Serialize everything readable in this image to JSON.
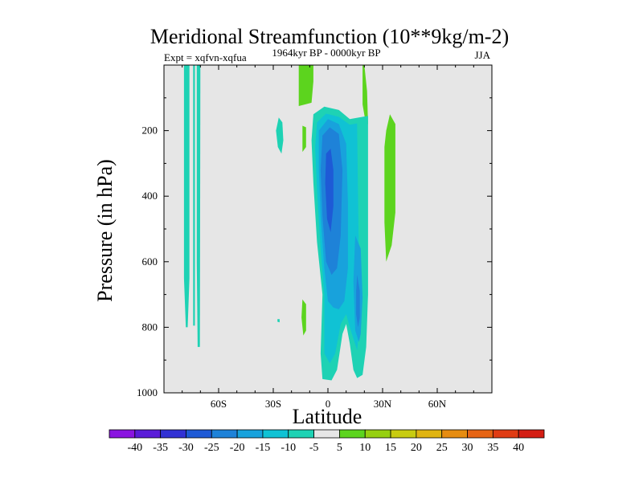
{
  "chart_data": {
    "type": "contour",
    "title": "Meridional Streamfunction (10**9kg/m-2)",
    "subtitle": "1964kyr BP - 0000kyr BP",
    "left_label": "Expt = xqfvn-xqfua",
    "right_label": "JJA",
    "xlabel": "Latitude",
    "ylabel": "Pressure (in hPa)",
    "x_ticks": [
      {
        "value": -60,
        "label": "60S"
      },
      {
        "value": -30,
        "label": "30S"
      },
      {
        "value": 0,
        "label": "0"
      },
      {
        "value": 30,
        "label": "30N"
      },
      {
        "value": 60,
        "label": "60N"
      }
    ],
    "y_ticks": [
      {
        "value": 200,
        "label": "200"
      },
      {
        "value": 400,
        "label": "400"
      },
      {
        "value": 600,
        "label": "600"
      },
      {
        "value": 800,
        "label": "800"
      },
      {
        "value": 1000,
        "label": "1000"
      }
    ],
    "xlim": [
      -90,
      90
    ],
    "ylim": [
      1000,
      0
    ],
    "background_color": "#e6e6e6",
    "colorbar": {
      "boundaries": [
        -40,
        -35,
        -30,
        -25,
        -20,
        -15,
        -10,
        -5,
        5,
        10,
        15,
        20,
        25,
        30,
        35,
        40
      ],
      "colors": [
        "#8a14e0",
        "#5a1cd8",
        "#3232d4",
        "#1e5ad6",
        "#1e82d8",
        "#18a2dc",
        "#10c2d4",
        "#1ed2b4",
        "#e6e6e6",
        "#5cd41e",
        "#96d010",
        "#c8cc10",
        "#e0b410",
        "#e68c10",
        "#e66414",
        "#e03c14",
        "#d41e14"
      ]
    },
    "regions": [
      {
        "level": -5,
        "color": "#1ed2b4",
        "points": [
          [
            -79,
            0
          ],
          [
            -76,
            0
          ],
          [
            -76,
            650
          ],
          [
            -77,
            800
          ],
          [
            -78,
            800
          ],
          [
            -79,
            650
          ]
        ]
      },
      {
        "level": -5,
        "color": "#1ed2b4",
        "points": [
          [
            -74,
            0
          ],
          [
            -73,
            0
          ],
          [
            -73,
            795
          ],
          [
            -74,
            795
          ]
        ]
      },
      {
        "level": -5,
        "color": "#1ed2b4",
        "points": [
          [
            -72,
            0
          ],
          [
            -70,
            0
          ],
          [
            -70.3,
            860
          ],
          [
            -71.5,
            860
          ],
          [
            -72,
            600
          ]
        ]
      },
      {
        "level": -5,
        "color": "#1ed2b4",
        "points": [
          [
            -27,
            160
          ],
          [
            -25,
            175
          ],
          [
            -24.5,
            230
          ],
          [
            -25.5,
            270
          ],
          [
            -27.5,
            250
          ],
          [
            -28.5,
            200
          ]
        ]
      },
      {
        "level": -5,
        "color": "#1ed2b4",
        "points": [
          [
            -27.7,
            775
          ],
          [
            -26.5,
            775
          ],
          [
            -26.5,
            785
          ],
          [
            -27.7,
            783
          ]
        ]
      },
      {
        "level": 5,
        "color": "#5cd41e",
        "points": [
          [
            -16,
            0
          ],
          [
            -8,
            0
          ],
          [
            -8,
            50
          ],
          [
            -9,
            115
          ],
          [
            -16,
            125
          ]
        ]
      },
      {
        "level": 5,
        "color": "#5cd41e",
        "points": [
          [
            19,
            0
          ],
          [
            20,
            0
          ],
          [
            21.5,
            80
          ],
          [
            22,
            180
          ],
          [
            21,
            185
          ],
          [
            19,
            120
          ]
        ]
      },
      {
        "level": 5,
        "color": "#5cd41e",
        "points": [
          [
            -14,
            185
          ],
          [
            -12,
            190
          ],
          [
            -12,
            250
          ],
          [
            -14,
            265
          ]
        ]
      },
      {
        "level": 5,
        "color": "#5cd41e",
        "points": [
          [
            -14,
            715
          ],
          [
            -12,
            730
          ],
          [
            -12,
            810
          ],
          [
            -13.5,
            825
          ],
          [
            -14.5,
            770
          ]
        ]
      },
      {
        "level": 5,
        "color": "#5cd41e",
        "points": [
          [
            34,
            150
          ],
          [
            37,
            180
          ],
          [
            37,
            450
          ],
          [
            35,
            550
          ],
          [
            32,
            600
          ],
          [
            31,
            480
          ],
          [
            31,
            250
          ],
          [
            32,
            200
          ]
        ]
      },
      {
        "level": -5,
        "color": "#1ed2b4",
        "points": [
          [
            -8,
            150
          ],
          [
            -2,
            127
          ],
          [
            6,
            137
          ],
          [
            12,
            165
          ],
          [
            22,
            155
          ],
          [
            22,
            700
          ],
          [
            21,
            860
          ],
          [
            19,
            945
          ],
          [
            16,
            955
          ],
          [
            14,
            930
          ],
          [
            12,
            850
          ],
          [
            10,
            790
          ],
          [
            8,
            820
          ],
          [
            5,
            930
          ],
          [
            2,
            962
          ],
          [
            -3,
            958
          ],
          [
            -4,
            880
          ],
          [
            -3,
            700
          ],
          [
            -6,
            540
          ],
          [
            -8,
            360
          ],
          [
            -9,
            230
          ]
        ]
      },
      {
        "level": -10,
        "color": "#10c2d4",
        "points": [
          [
            -6,
            175
          ],
          [
            -1,
            148
          ],
          [
            6,
            158
          ],
          [
            12,
            182
          ],
          [
            16,
            178
          ],
          [
            17,
            600
          ],
          [
            18,
            760
          ],
          [
            16,
            870
          ],
          [
            12,
            800
          ],
          [
            10,
            760
          ],
          [
            7,
            790
          ],
          [
            4,
            880
          ],
          [
            1,
            910
          ],
          [
            -2,
            880
          ],
          [
            -2,
            700
          ],
          [
            -4,
            560
          ],
          [
            -6,
            380
          ],
          [
            -7,
            250
          ]
        ]
      },
      {
        "level": -15,
        "color": "#18a2dc",
        "points": [
          [
            -5,
            200
          ],
          [
            0,
            165
          ],
          [
            6,
            180
          ],
          [
            10,
            240
          ],
          [
            11,
            420
          ],
          [
            11,
            620
          ],
          [
            9,
            720
          ],
          [
            6,
            745
          ],
          [
            3,
            740
          ],
          [
            0,
            720
          ],
          [
            -2,
            620
          ],
          [
            -4,
            460
          ],
          [
            -5,
            320
          ]
        ]
      },
      {
        "level": -15,
        "color": "#18a2dc",
        "points": [
          [
            15,
            520
          ],
          [
            18,
            560
          ],
          [
            19,
            710
          ],
          [
            18,
            820
          ],
          [
            17,
            845
          ],
          [
            15,
            810
          ],
          [
            14,
            660
          ]
        ]
      },
      {
        "level": -20,
        "color": "#1e82d8",
        "points": [
          [
            -3,
            215
          ],
          [
            1,
            190
          ],
          [
            6,
            210
          ],
          [
            8,
            320
          ],
          [
            7,
            520
          ],
          [
            5,
            620
          ],
          [
            2,
            640
          ],
          [
            -1,
            600
          ],
          [
            -3,
            460
          ],
          [
            -4,
            320
          ]
        ]
      },
      {
        "level": -20,
        "color": "#1e82d8",
        "points": [
          [
            16,
            640
          ],
          [
            17.5,
            690
          ],
          [
            17.5,
            770
          ],
          [
            16.5,
            800
          ],
          [
            15.5,
            760
          ],
          [
            15.5,
            690
          ]
        ]
      },
      {
        "level": -25,
        "color": "#1e5ad6",
        "points": [
          [
            -1,
            270
          ],
          [
            1.5,
            255
          ],
          [
            3,
            320
          ],
          [
            3,
            430
          ],
          [
            1.5,
            510
          ],
          [
            -0.5,
            470
          ],
          [
            -1.5,
            360
          ]
        ]
      }
    ]
  }
}
